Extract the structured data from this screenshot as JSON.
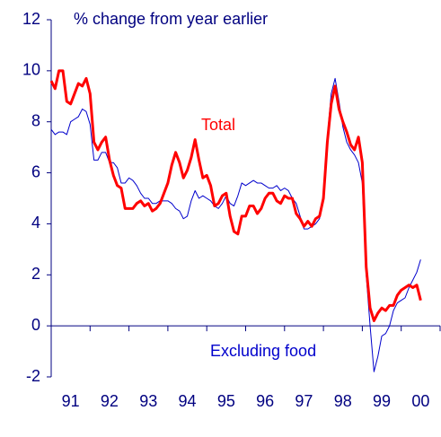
{
  "chart_data": {
    "type": "line",
    "subtitle": "% change from year earlier",
    "annotations": [
      {
        "text": "Total",
        "color": "#ff0000"
      },
      {
        "text": "Excluding food",
        "color": "#0000cc"
      }
    ],
    "x": [
      1991.0,
      1991.1,
      1991.2,
      1991.3,
      1991.4,
      1991.5,
      1991.6,
      1991.7,
      1991.8,
      1991.9,
      1992.0,
      1992.1,
      1992.2,
      1992.3,
      1992.4,
      1992.5,
      1992.6,
      1992.7,
      1992.8,
      1992.9,
      1993.0,
      1993.1,
      1993.2,
      1993.3,
      1993.4,
      1993.5,
      1993.6,
      1993.7,
      1993.8,
      1993.9,
      1994.0,
      1994.1,
      1994.2,
      1994.3,
      1994.4,
      1994.5,
      1994.6,
      1994.7,
      1994.8,
      1994.9,
      1995.0,
      1995.1,
      1995.2,
      1995.3,
      1995.4,
      1995.5,
      1995.6,
      1995.7,
      1995.8,
      1995.9,
      1996.0,
      1996.1,
      1996.2,
      1996.3,
      1996.4,
      1996.5,
      1996.6,
      1996.7,
      1996.8,
      1996.9,
      1997.0,
      1997.1,
      1997.2,
      1997.3,
      1997.4,
      1997.5,
      1997.6,
      1997.7,
      1997.8,
      1997.9,
      1998.0,
      1998.1,
      1998.2,
      1998.3,
      1998.4,
      1998.5,
      1998.6,
      1998.7,
      1998.8,
      1998.9,
      1999.0,
      1999.1,
      1999.2,
      1999.3,
      1999.4,
      1999.5,
      1999.6,
      1999.7,
      1999.8,
      1999.9,
      2000.0,
      2000.1,
      2000.2,
      2000.3,
      2000.4,
      2000.5
    ],
    "series": [
      {
        "name": "Total",
        "color": "#ff0000",
        "width": 3,
        "values": [
          9.6,
          9.3,
          10.0,
          10.0,
          8.8,
          8.7,
          9.1,
          9.5,
          9.4,
          9.7,
          9.1,
          7.2,
          6.9,
          7.2,
          7.4,
          6.5,
          5.9,
          5.5,
          5.4,
          4.6,
          4.6,
          4.6,
          4.8,
          4.9,
          4.7,
          4.8,
          4.5,
          4.6,
          4.8,
          5.2,
          5.6,
          6.3,
          6.8,
          6.4,
          5.8,
          6.1,
          6.6,
          7.3,
          6.5,
          5.8,
          5.9,
          5.5,
          4.7,
          4.8,
          5.1,
          5.2,
          4.3,
          3.7,
          3.6,
          4.3,
          4.3,
          4.7,
          4.7,
          4.4,
          4.6,
          5.0,
          5.2,
          5.2,
          4.9,
          4.8,
          5.1,
          5.0,
          5.0,
          4.4,
          4.2,
          3.9,
          4.1,
          3.9,
          4.2,
          4.3,
          5.0,
          7.2,
          8.7,
          9.4,
          8.5,
          8.0,
          7.6,
          7.1,
          6.9,
          7.4,
          6.4,
          2.3,
          0.7,
          0.2,
          0.5,
          0.7,
          0.6,
          0.8,
          0.8,
          1.2,
          1.4,
          1.5,
          1.6,
          1.5,
          1.6,
          1.0
        ]
      },
      {
        "name": "Excluding food",
        "color": "#0000cc",
        "width": 1,
        "values": [
          7.7,
          7.5,
          7.6,
          7.6,
          7.5,
          8.0,
          8.1,
          8.2,
          8.5,
          8.4,
          7.9,
          6.5,
          6.5,
          6.8,
          6.8,
          6.4,
          6.4,
          6.2,
          5.6,
          5.6,
          5.8,
          5.7,
          5.5,
          5.2,
          5.0,
          5.0,
          4.8,
          4.8,
          4.9,
          4.9,
          4.9,
          4.8,
          4.6,
          4.5,
          4.2,
          4.3,
          4.9,
          5.3,
          5.0,
          5.1,
          5.0,
          4.9,
          4.7,
          4.6,
          4.8,
          5.1,
          4.8,
          4.7,
          5.1,
          5.6,
          5.5,
          5.6,
          5.7,
          5.6,
          5.6,
          5.5,
          5.4,
          5.4,
          5.5,
          5.3,
          5.4,
          5.3,
          5.0,
          4.8,
          4.3,
          3.8,
          3.8,
          3.9,
          4.0,
          4.2,
          5.2,
          7.4,
          9.1,
          9.7,
          8.8,
          7.8,
          7.2,
          6.9,
          6.7,
          6.4,
          5.6,
          2.0,
          0.0,
          -1.8,
          -1.2,
          -0.4,
          -0.3,
          0.0,
          0.6,
          0.9,
          1.0,
          1.1,
          1.5,
          1.8,
          2.1,
          2.6
        ]
      }
    ],
    "xlim": [
      1991,
      2001
    ],
    "xticks": [
      {
        "value": 1991.5,
        "label": "91"
      },
      {
        "value": 1992.5,
        "label": "92"
      },
      {
        "value": 1993.5,
        "label": "93"
      },
      {
        "value": 1994.5,
        "label": "94"
      },
      {
        "value": 1995.5,
        "label": "95"
      },
      {
        "value": 1996.5,
        "label": "96"
      },
      {
        "value": 1997.5,
        "label": "97"
      },
      {
        "value": 1998.5,
        "label": "98"
      },
      {
        "value": 1999.5,
        "label": "99"
      },
      {
        "value": 2000.5,
        "label": "00"
      }
    ],
    "xminor_ticks": [
      1991,
      1992,
      1993,
      1994,
      1995,
      1996,
      1997,
      1998,
      1999,
      2000,
      2001
    ],
    "ylim": [
      -2,
      12
    ],
    "yticks": [
      -2,
      0,
      2,
      4,
      6,
      8,
      10,
      12
    ],
    "grid": false
  }
}
